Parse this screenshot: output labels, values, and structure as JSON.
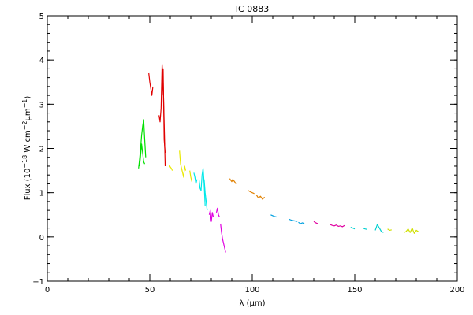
{
  "chart_data": {
    "type": "line",
    "title": "IC 0883",
    "xlabel": "λ (μm)",
    "ylabel": {
      "prefix": "Flux (10",
      "exp1": "−18",
      "mid": " W cm",
      "exp2": "−2",
      "mu": "μm",
      "exp3": "−1",
      "suffix": ")"
    },
    "xlim": [
      0,
      200
    ],
    "ylim": [
      -1,
      5
    ],
    "x_ticks": [
      0,
      50,
      100,
      150,
      200
    ],
    "y_ticks": [
      -1,
      0,
      1,
      2,
      3,
      4,
      5
    ],
    "x_minor_step": 10,
    "y_minor_step": 0.2,
    "grid": false,
    "series": [
      {
        "color": "#00e000",
        "x": [
          44.5,
          45.0,
          45.5,
          46.0,
          46.5,
          47.0,
          47.5,
          48.0
        ],
        "y": [
          1.55,
          1.75,
          2.0,
          2.3,
          2.5,
          2.65,
          2.2,
          1.8
        ]
      },
      {
        "color": "#00e000",
        "x": [
          45.0,
          45.5,
          46.0,
          46.5,
          47.0,
          47.5
        ],
        "y": [
          1.6,
          1.85,
          2.1,
          1.9,
          1.7,
          1.65
        ]
      },
      {
        "color": "#e00000",
        "x": [
          49.5,
          50.0,
          50.5,
          51.0,
          51.5
        ],
        "y": [
          3.7,
          3.5,
          3.35,
          3.2,
          3.4
        ]
      },
      {
        "color": "#e00000",
        "x": [
          54.5,
          55.0,
          55.5,
          56.0,
          56.5,
          57.0,
          57.5
        ],
        "y": [
          2.75,
          2.6,
          2.9,
          3.9,
          3.5,
          2.6,
          1.6
        ]
      },
      {
        "color": "#e00000",
        "x": [
          56.0,
          56.5,
          57.0,
          57.5
        ],
        "y": [
          3.2,
          3.8,
          2.2,
          1.9
        ]
      },
      {
        "color": "#e8e800",
        "x": [
          59.5,
          60.0,
          60.5,
          61.0
        ],
        "y": [
          1.62,
          1.58,
          1.55,
          1.5
        ]
      },
      {
        "color": "#e8e800",
        "x": [
          64.5,
          65.0,
          65.5,
          66.0,
          66.5,
          67.0,
          67.5
        ],
        "y": [
          1.95,
          1.65,
          1.55,
          1.45,
          1.35,
          1.6,
          1.5
        ]
      },
      {
        "color": "#e8e800",
        "x": [
          69.5,
          70.0,
          70.5
        ],
        "y": [
          1.5,
          1.35,
          1.25
        ]
      },
      {
        "color": "#00e8e8",
        "x": [
          71.5,
          72.0,
          72.5,
          73.0
        ],
        "y": [
          1.45,
          1.35,
          1.2,
          1.3
        ]
      },
      {
        "color": "#00e8e8",
        "x": [
          74.0,
          74.5,
          75.0,
          75.5,
          76.0,
          76.5,
          77.0
        ],
        "y": [
          1.3,
          1.1,
          1.05,
          1.4,
          1.55,
          1.2,
          0.7
        ]
      },
      {
        "color": "#00e8e8",
        "x": [
          76.5,
          77.0,
          77.5,
          78.0
        ],
        "y": [
          1.3,
          1.0,
          0.8,
          0.6
        ]
      },
      {
        "color": "#e000e0",
        "x": [
          79.0,
          79.5,
          80.0,
          80.5,
          81.0
        ],
        "y": [
          0.5,
          0.6,
          0.35,
          0.55,
          0.45
        ]
      },
      {
        "color": "#e000e0",
        "x": [
          82.5,
          83.0,
          83.5,
          84.0
        ],
        "y": [
          0.55,
          0.65,
          0.5,
          0.45
        ]
      },
      {
        "color": "#e000e0",
        "x": [
          84.5,
          85.0,
          85.5,
          86.0,
          86.5,
          87.0
        ],
        "y": [
          0.3,
          0.1,
          -0.05,
          -0.15,
          -0.25,
          -0.35
        ]
      },
      {
        "color": "#e08000",
        "x": [
          89.0,
          89.5,
          90.0,
          90.5,
          91.0,
          91.5,
          92.0
        ],
        "y": [
          1.32,
          1.28,
          1.25,
          1.3,
          1.27,
          1.24,
          1.2
        ]
      },
      {
        "color": "#e08000",
        "x": [
          98.0,
          99.0,
          100.0,
          101.0
        ],
        "y": [
          1.05,
          1.02,
          1.0,
          0.98
        ]
      },
      {
        "color": "#e08000",
        "x": [
          102.0,
          103.0,
          104.0,
          105.0,
          106.0
        ],
        "y": [
          0.95,
          0.88,
          0.92,
          0.85,
          0.9
        ]
      },
      {
        "color": "#00a0e0",
        "x": [
          109.0,
          110.0,
          111.0,
          112.0
        ],
        "y": [
          0.5,
          0.48,
          0.46,
          0.45
        ]
      },
      {
        "color": "#00a0e0",
        "x": [
          118.0,
          119.0,
          120.0,
          121.0,
          122.0
        ],
        "y": [
          0.4,
          0.38,
          0.37,
          0.36,
          0.35
        ]
      },
      {
        "color": "#00a0e0",
        "x": [
          122.5,
          123.5,
          124.5,
          125.5
        ],
        "y": [
          0.33,
          0.3,
          0.32,
          0.29
        ]
      },
      {
        "color": "#e000a0",
        "x": [
          130.0,
          131.0,
          132.0
        ],
        "y": [
          0.35,
          0.32,
          0.3
        ]
      },
      {
        "color": "#e000a0",
        "x": [
          138.0,
          139.0,
          140.0,
          141.0,
          142.0,
          143.0,
          144.0,
          145.0
        ],
        "y": [
          0.28,
          0.26,
          0.25,
          0.27,
          0.24,
          0.25,
          0.23,
          0.26
        ]
      },
      {
        "color": "#00d0d0",
        "x": [
          148.0,
          149.0,
          150.0
        ],
        "y": [
          0.22,
          0.2,
          0.18
        ]
      },
      {
        "color": "#00d0d0",
        "x": [
          154.0,
          155.0,
          156.0
        ],
        "y": [
          0.2,
          0.18,
          0.17
        ]
      },
      {
        "color": "#00d0d0",
        "x": [
          160.0,
          161.0,
          162.0,
          163.0,
          164.0
        ],
        "y": [
          0.15,
          0.28,
          0.2,
          0.12,
          0.1
        ]
      },
      {
        "color": "#d0e000",
        "x": [
          166.0,
          167.0,
          168.0
        ],
        "y": [
          0.18,
          0.15,
          0.16
        ]
      },
      {
        "color": "#d0e000",
        "x": [
          174.0,
          175.0,
          176.0,
          177.0,
          178.0,
          179.0,
          180.0,
          181.0
        ],
        "y": [
          0.1,
          0.12,
          0.18,
          0.1,
          0.2,
          0.08,
          0.15,
          0.12
        ]
      }
    ]
  }
}
